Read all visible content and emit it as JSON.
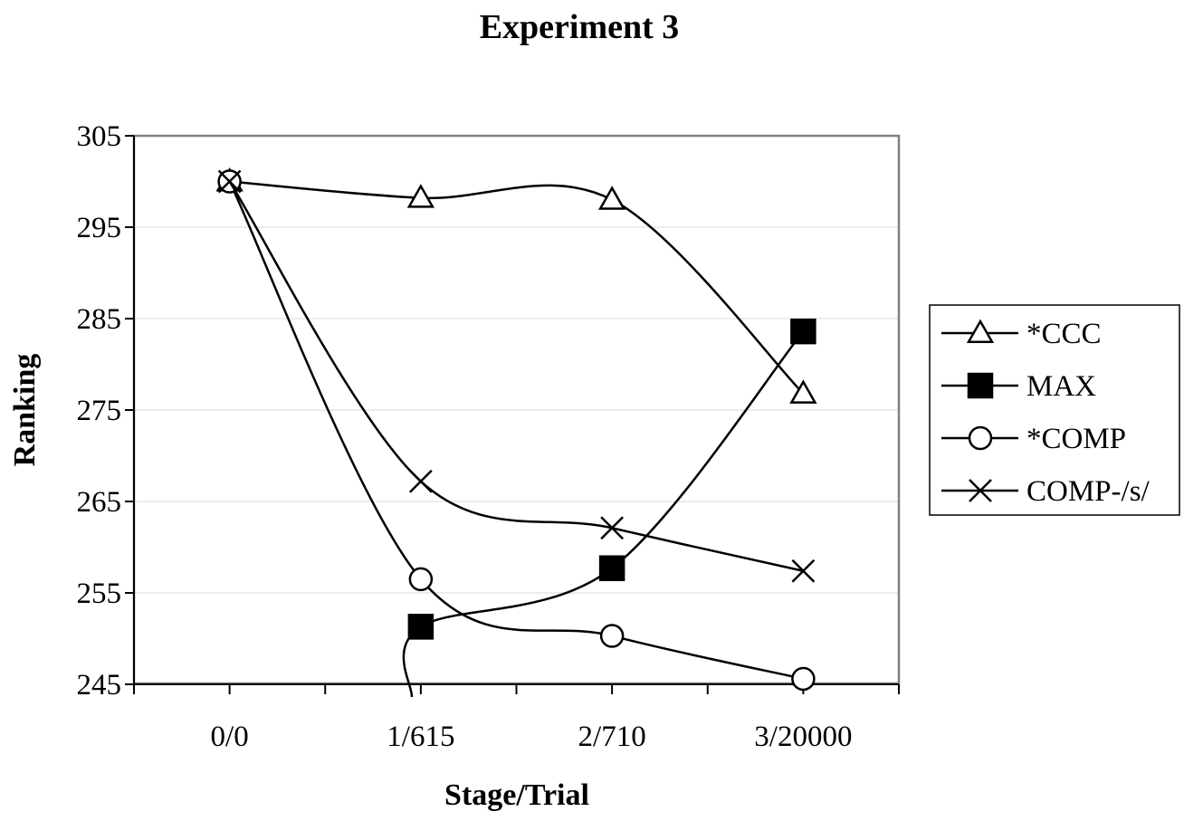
{
  "chart_data": {
    "type": "line",
    "title": "Experiment 3",
    "xlabel": "Stage/Trial",
    "ylabel": "Ranking",
    "categories": [
      "0/0",
      "1/615",
      "2/710",
      "3/20000"
    ],
    "ylim": [
      245,
      305
    ],
    "yticks": [
      245,
      255,
      265,
      275,
      285,
      295,
      305
    ],
    "grid": true,
    "legend_position": "right",
    "series": [
      {
        "name": "*CCC",
        "marker": "triangle-open",
        "values": [
          300,
          298.2,
          298,
          276.8
        ]
      },
      {
        "name": "MAX",
        "marker": "square-filled",
        "values": [
          null,
          251.3,
          257.7,
          283.6
        ]
      },
      {
        "name": "*COMP",
        "marker": "circle-open",
        "values": [
          300,
          256.5,
          250.3,
          245.6
        ]
      },
      {
        "name": "COMP-/s/",
        "marker": "x",
        "values": [
          300,
          267.2,
          262.1,
          257.4
        ]
      }
    ]
  },
  "colors": {
    "line": "#000000",
    "grid": "#d9d9d9",
    "plot_border": "#808080"
  }
}
